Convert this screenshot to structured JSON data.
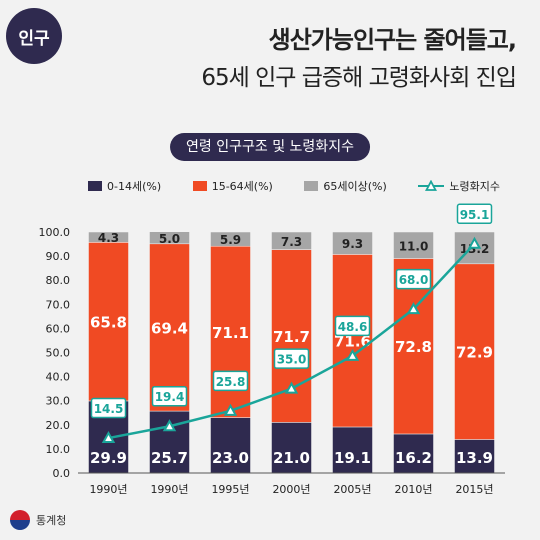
{
  "badge": "인구",
  "title_line1": "생산가능인구는 줄어들고,",
  "title_line2": "65세 인구 급증해 고령화사회 진입",
  "subtitle": "연령 인구구조 및 노령화지수",
  "footer": {
    "source": "통계청"
  },
  "colors": {
    "age0_14": "#2f2a4f",
    "age15_64": "#f04a23",
    "age65plus": "#a6a6a6",
    "index_line": "#1aa59a",
    "badge_bg": "#2f2a4f"
  },
  "chart_data": {
    "type": "bar",
    "stacked": true,
    "categories": [
      "1990년",
      "1990년",
      "1995년",
      "2000년",
      "2005년",
      "2010년",
      "2015년"
    ],
    "series": [
      {
        "name": "0-14세(%)",
        "values": [
          29.9,
          25.7,
          23.0,
          21.0,
          19.1,
          16.2,
          13.9
        ],
        "labels": [
          "29.9",
          "25.7",
          "23.0",
          "21.0",
          "19.1",
          "16.2",
          "13.9"
        ]
      },
      {
        "name": "15-64세(%)",
        "values": [
          65.8,
          69.4,
          71.1,
          71.7,
          71.6,
          72.8,
          72.9
        ],
        "labels": [
          "65.8",
          "69.4",
          "71.1",
          "71.7",
          "71.6",
          "72.8",
          "72.9"
        ]
      },
      {
        "name": "65세이상(%)",
        "values": [
          4.3,
          5.0,
          5.9,
          7.3,
          9.3,
          11.0,
          13.2
        ],
        "labels": [
          "4.3",
          "5.0",
          "5.9",
          "7.3",
          "9.3",
          "11.0",
          "13.2"
        ]
      }
    ],
    "line_series": {
      "name": "노령화지수",
      "values": [
        14.5,
        19.4,
        25.8,
        35.0,
        48.6,
        68.0,
        95.1
      ],
      "labels": [
        "14.5",
        "19.4",
        "25.8",
        "35.0",
        "48.6",
        "68.0",
        "95.1"
      ]
    },
    "ylim": [
      0,
      100
    ],
    "yticks": [
      "0.0",
      "10.0",
      "20.0",
      "30.0",
      "40.0",
      "50.0",
      "60.0",
      "70.0",
      "80.0",
      "90.0",
      "100.0"
    ],
    "grid": false,
    "legend_position": "top"
  }
}
